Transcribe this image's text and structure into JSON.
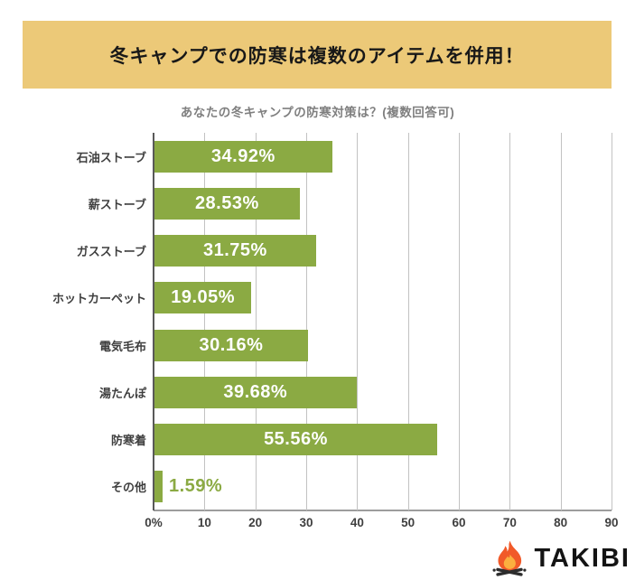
{
  "banner": {
    "title": "冬キャンプでの防寒は複数のアイテムを併用！",
    "bg_color": "#ecc978"
  },
  "subtitle": "あなたの冬キャンプの防寒対策は？(複数回答可)",
  "chart_data": {
    "type": "bar",
    "orientation": "horizontal",
    "title": "あなたの冬キャンプの防寒対策は？(複数回答可)",
    "categories": [
      "石油ストーブ",
      "薪ストーブ",
      "ガスストーブ",
      "ホットカーペット",
      "電気毛布",
      "湯たんぽ",
      "防寒着",
      "その他"
    ],
    "values": [
      34.92,
      28.53,
      31.75,
      19.05,
      30.16,
      39.68,
      55.56,
      1.59
    ],
    "value_labels": [
      "34.92%",
      "28.53%",
      "31.75%",
      "19.05%",
      "30.16%",
      "39.68%",
      "55.56%",
      "1.59%"
    ],
    "x_ticks": [
      "0%",
      "10",
      "20",
      "30",
      "40",
      "50",
      "60",
      "70",
      "80",
      "90"
    ],
    "xlim": [
      0,
      90
    ],
    "grid": true,
    "legend": false,
    "bar_color": "#8baa43",
    "label_color_inside": "#ffffff",
    "label_color_outside": "#8baa43"
  },
  "logo": {
    "text": "TAKIBI",
    "icon": "campfire-icon",
    "flame_outer_color": "#f15a29",
    "flame_inner_color": "#fbaf3f",
    "log_color": "#2d2d2d"
  }
}
